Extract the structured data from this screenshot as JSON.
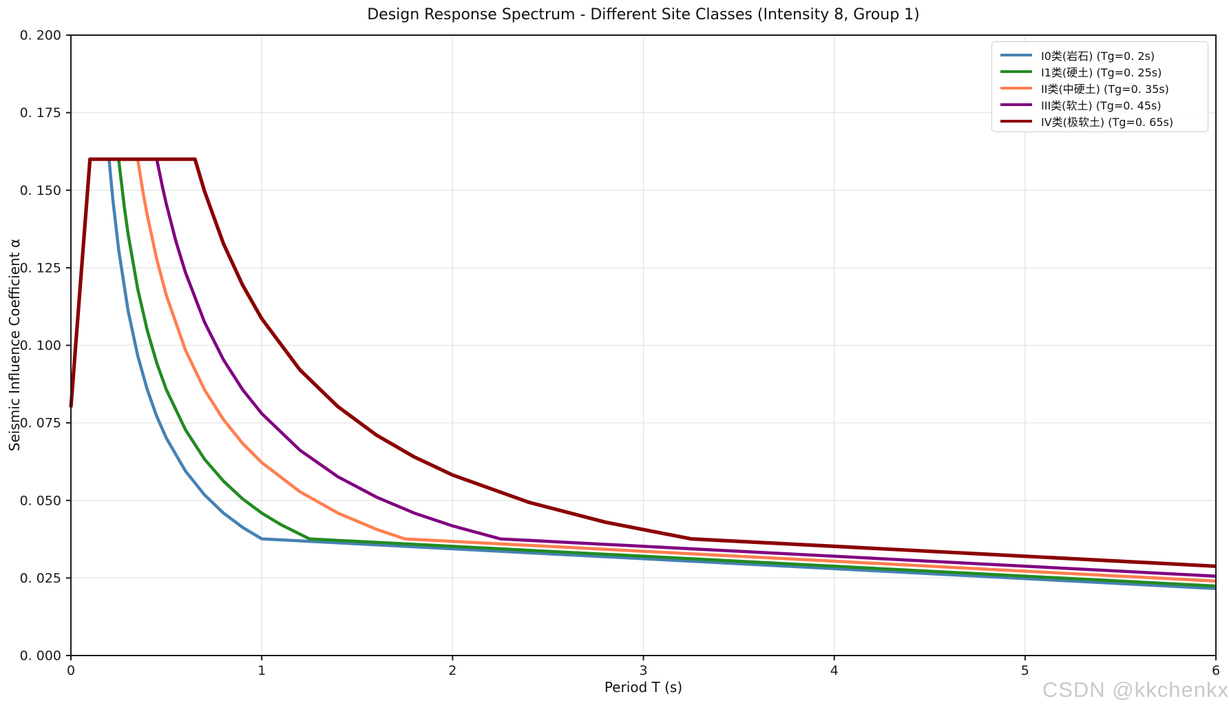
{
  "page": {
    "background": "#ffffff"
  },
  "watermark": {
    "text": "CSDN @kkchenkx",
    "color": "#c9c9c9"
  },
  "chart_data": {
    "type": "line",
    "title": "Design Response Spectrum - Different Site Classes (Intensity 8, Group 1)",
    "xlabel": "Period T (s)",
    "ylabel": "Seismic Influence Coefficient α",
    "xlim": [
      0,
      6
    ],
    "ylim": [
      0,
      0.2
    ],
    "x_ticks": [
      0,
      1,
      2,
      3,
      4,
      5,
      6
    ],
    "x_tick_labels": [
      "0",
      "1",
      "2",
      "3",
      "4",
      "5",
      "6"
    ],
    "y_ticks": [
      0,
      0.025,
      0.05,
      0.075,
      0.1,
      0.125,
      0.15,
      0.175,
      0.2
    ],
    "y_tick_labels": [
      "0. 000",
      "0. 025",
      "0. 050",
      "0. 075",
      "0. 100",
      "0. 125",
      "0. 150",
      "0. 175",
      "0. 200"
    ],
    "grid": true,
    "grid_color": "#e7e7e7",
    "spine_color": "#1a1a1a",
    "legend_position": "upper right",
    "spectrum_model": {
      "alpha_max": 0.16,
      "alpha_at_T0": 0.08,
      "plateau_range": "0.1s to Tg",
      "power_decay": "(Tg/T)^0.9 from Tg to 5Tg",
      "linear_decay_slope_per_s": 0.0032,
      "x_end_s": 6
    },
    "series": [
      {
        "name": "site-class-I0",
        "label": "I0类(岩石) (Tg=0. 2s)",
        "Tg": 0.2,
        "color": "#4682B4",
        "linewidth": 4.5,
        "points": [
          [
            0,
            0.08
          ],
          [
            0.1,
            0.16
          ],
          [
            0.2,
            0.16
          ],
          [
            0.22,
            0.1468
          ],
          [
            0.25,
            0.1309
          ],
          [
            0.3,
            0.1111
          ],
          [
            0.35,
            0.0967
          ],
          [
            0.4,
            0.0857
          ],
          [
            0.45,
            0.0771
          ],
          [
            0.5,
            0.0701
          ],
          [
            0.6,
            0.0595
          ],
          [
            0.7,
            0.0518
          ],
          [
            0.8,
            0.0459
          ],
          [
            0.9,
            0.0413
          ],
          [
            1.0,
            0.0376
          ],
          [
            2,
            0.0344
          ],
          [
            3,
            0.0312
          ],
          [
            4,
            0.028
          ],
          [
            5,
            0.0248
          ],
          [
            6,
            0.0216
          ]
        ]
      },
      {
        "name": "site-class-I1",
        "label": "I1类(硬土) (Tg=0. 25s)",
        "Tg": 0.25,
        "color": "#228B22",
        "linewidth": 4.5,
        "points": [
          [
            0,
            0.08
          ],
          [
            0.1,
            0.16
          ],
          [
            0.25,
            0.16
          ],
          [
            0.28,
            0.1445
          ],
          [
            0.3,
            0.1358
          ],
          [
            0.35,
            0.1182
          ],
          [
            0.4,
            0.1048
          ],
          [
            0.45,
            0.0943
          ],
          [
            0.5,
            0.0857
          ],
          [
            0.6,
            0.0728
          ],
          [
            0.7,
            0.0633
          ],
          [
            0.8,
            0.0562
          ],
          [
            0.9,
            0.0505
          ],
          [
            1.0,
            0.0459
          ],
          [
            1.1,
            0.0422
          ],
          [
            1.25,
            0.0376
          ],
          [
            2,
            0.0352
          ],
          [
            3,
            0.032
          ],
          [
            4,
            0.0288
          ],
          [
            5,
            0.0256
          ],
          [
            6,
            0.0224
          ]
        ]
      },
      {
        "name": "site-class-II",
        "label": "II类(中硬土) (Tg=0. 35s)",
        "Tg": 0.35,
        "color": "#FF7F50",
        "linewidth": 4.5,
        "points": [
          [
            0,
            0.08
          ],
          [
            0.1,
            0.16
          ],
          [
            0.35,
            0.16
          ],
          [
            0.38,
            0.1486
          ],
          [
            0.4,
            0.1419
          ],
          [
            0.45,
            0.1277
          ],
          [
            0.5,
            0.1161
          ],
          [
            0.6,
            0.0985
          ],
          [
            0.7,
            0.0857
          ],
          [
            0.8,
            0.076
          ],
          [
            0.9,
            0.0684
          ],
          [
            1.0,
            0.0622
          ],
          [
            1.2,
            0.0528
          ],
          [
            1.4,
            0.0459
          ],
          [
            1.6,
            0.0407
          ],
          [
            1.75,
            0.0376
          ],
          [
            2,
            0.0368
          ],
          [
            3,
            0.0336
          ],
          [
            4,
            0.0304
          ],
          [
            5,
            0.0272
          ],
          [
            6,
            0.024
          ]
        ]
      },
      {
        "name": "site-class-III",
        "label": "III类(软土) (Tg=0. 45s)",
        "Tg": 0.45,
        "color": "#800080",
        "linewidth": 4.5,
        "points": [
          [
            0,
            0.08
          ],
          [
            0.1,
            0.16
          ],
          [
            0.45,
            0.16
          ],
          [
            0.48,
            0.151
          ],
          [
            0.5,
            0.1455
          ],
          [
            0.55,
            0.1336
          ],
          [
            0.6,
            0.1235
          ],
          [
            0.7,
            0.1075
          ],
          [
            0.8,
            0.0953
          ],
          [
            0.9,
            0.0857
          ],
          [
            1.0,
            0.078
          ],
          [
            1.2,
            0.0662
          ],
          [
            1.4,
            0.0576
          ],
          [
            1.6,
            0.0511
          ],
          [
            1.8,
            0.0459
          ],
          [
            2.0,
            0.0418
          ],
          [
            2.25,
            0.0376
          ],
          [
            3,
            0.0352
          ],
          [
            4,
            0.032
          ],
          [
            5,
            0.0288
          ],
          [
            6,
            0.0256
          ]
        ]
      },
      {
        "name": "site-class-IV",
        "label": "IV类(极软土) (Tg=0. 65s)",
        "Tg": 0.65,
        "color": "#8B0000",
        "linewidth": 5.2,
        "points": [
          [
            0,
            0.08
          ],
          [
            0.1,
            0.16
          ],
          [
            0.65,
            0.16
          ],
          [
            0.7,
            0.1497
          ],
          [
            0.8,
            0.1327
          ],
          [
            0.9,
            0.1194
          ],
          [
            1.0,
            0.1086
          ],
          [
            1.2,
            0.0921
          ],
          [
            1.4,
            0.0802
          ],
          [
            1.6,
            0.0711
          ],
          [
            1.8,
            0.064
          ],
          [
            2.0,
            0.0582
          ],
          [
            2.4,
            0.0494
          ],
          [
            2.8,
            0.043
          ],
          [
            3.25,
            0.0376
          ],
          [
            4,
            0.0352
          ],
          [
            5,
            0.032
          ],
          [
            6,
            0.0288
          ]
        ]
      }
    ]
  }
}
